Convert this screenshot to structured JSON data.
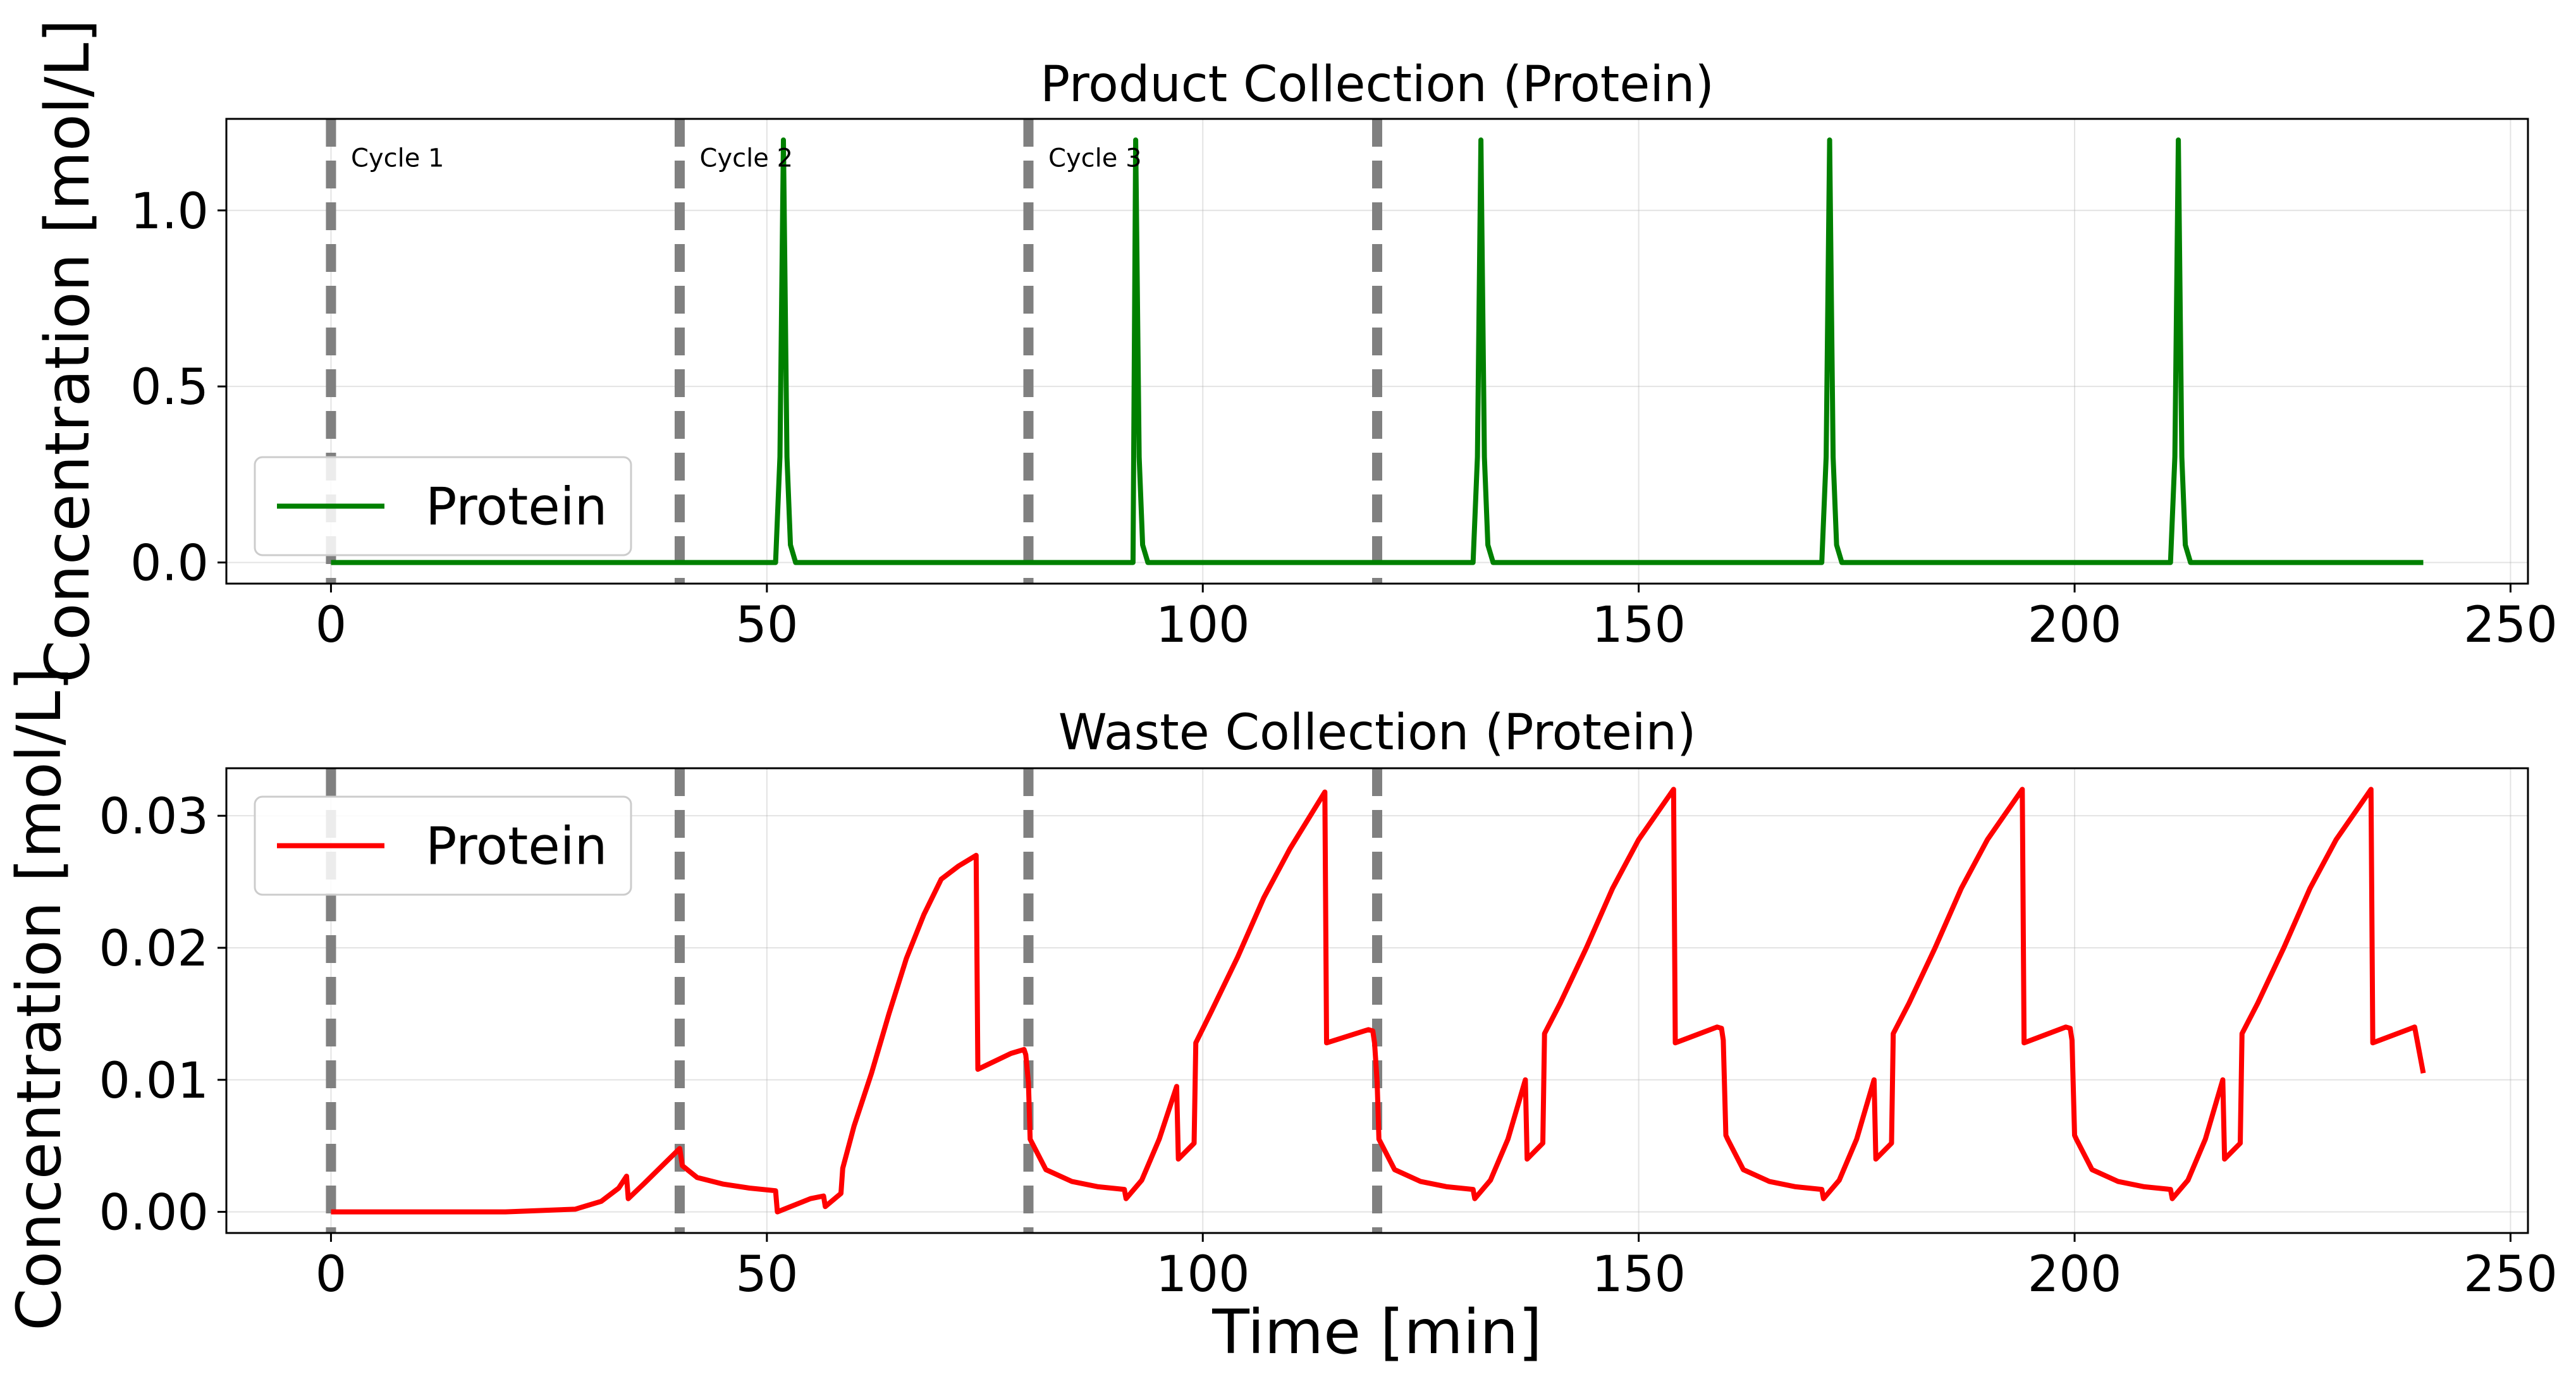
{
  "chart_data": [
    {
      "type": "line",
      "title": "Product Collection (Protein)",
      "xlabel": "",
      "ylabel": "Concentration [mol/L]",
      "xlim": [
        -12,
        252
      ],
      "ylim": [
        -0.06,
        1.26
      ],
      "xticks": [
        0,
        50,
        100,
        150,
        200,
        250
      ],
      "yticks": [
        0.0,
        0.5,
        1.0
      ],
      "ytick_labels": [
        "0.0",
        "0.5",
        "1.0"
      ],
      "grid": true,
      "legend": "lower-left",
      "cycle_lines": [
        0,
        40,
        80,
        120
      ],
      "annotations": [
        {
          "x": 2,
          "y": 1.15,
          "text": "Cycle 1"
        },
        {
          "x": 42,
          "y": 1.15,
          "text": "Cycle 2"
        },
        {
          "x": 82,
          "y": 1.15,
          "text": "Cycle 3"
        }
      ],
      "series": [
        {
          "name": "Protein",
          "color": "#008000",
          "x": [
            0,
            51,
            51.5,
            51.9,
            52.3,
            52.7,
            53.3,
            92,
            92.3,
            92.7,
            93.1,
            93.7,
            131,
            131.5,
            131.9,
            132.3,
            132.7,
            133.3,
            171,
            171.5,
            171.9,
            172.3,
            172.7,
            173.3,
            211,
            211.5,
            211.9,
            212.3,
            212.7,
            213.3,
            240
          ],
          "y": [
            0,
            0,
            0.3,
            1.2,
            0.3,
            0.05,
            0,
            0,
            1.2,
            0.3,
            0.05,
            0,
            0,
            0.3,
            1.2,
            0.3,
            0.05,
            0,
            0,
            0.3,
            1.2,
            0.3,
            0.05,
            0,
            0,
            0.3,
            1.2,
            0.3,
            0.05,
            0,
            0
          ]
        }
      ]
    },
    {
      "type": "line",
      "title": "Waste Collection (Protein)",
      "xlabel": "Time [min]",
      "ylabel": "Concentration [mol/L]",
      "xlim": [
        -12,
        252
      ],
      "ylim": [
        -0.0016,
        0.0336
      ],
      "xticks": [
        0,
        50,
        100,
        150,
        200,
        250
      ],
      "yticks": [
        0.0,
        0.01,
        0.02,
        0.03
      ],
      "ytick_labels": [
        "0.00",
        "0.01",
        "0.02",
        "0.03"
      ],
      "grid": true,
      "legend": "upper-left",
      "cycle_lines": [
        0,
        40,
        80,
        120
      ],
      "series": [
        {
          "name": "Protein",
          "color": "#ff0000",
          "x": [
            0,
            20,
            28,
            31,
            33,
            33.9,
            34.1,
            36,
            38,
            40,
            40.3,
            42,
            45,
            48,
            51,
            51.2,
            55,
            56.5,
            56.7,
            58.5,
            58.7,
            60,
            62,
            64,
            66,
            68,
            70,
            72,
            74,
            74.2,
            78,
            79.5,
            79.7,
            80,
            80.2,
            82,
            85,
            88,
            91,
            91.2,
            93,
            95,
            97,
            97.2,
            99,
            99.2,
            101,
            104,
            107,
            110,
            114,
            114.2,
            119,
            119.5,
            119.7,
            120,
            120.2,
            122,
            125,
            128,
            131,
            131.2,
            133,
            135,
            137,
            137.2,
            139,
            139.2,
            141,
            144,
            147,
            150,
            154,
            154.2,
            159,
            159.5,
            159.7,
            160,
            160.2,
            162,
            165,
            168,
            171,
            171.2,
            173,
            175,
            177,
            177.2,
            179,
            179.2,
            181,
            184,
            187,
            190,
            194,
            194.2,
            199,
            199.5,
            199.7,
            200,
            200.2,
            202,
            205,
            208,
            211,
            211.2,
            213,
            215,
            217,
            217.2,
            219,
            219.2,
            221,
            224,
            227,
            230,
            234,
            234.2,
            239,
            240
          ],
          "y": [
            0,
            0,
            0.0002,
            0.0008,
            0.0018,
            0.0027,
            0.001,
            0.0022,
            0.0035,
            0.0048,
            0.0035,
            0.0026,
            0.0021,
            0.0018,
            0.0016,
            0,
            0.001,
            0.0012,
            0.0004,
            0.0014,
            0.0033,
            0.0065,
            0.0105,
            0.015,
            0.0192,
            0.0225,
            0.0252,
            0.0262,
            0.027,
            0.0108,
            0.012,
            0.0123,
            0.0119,
            0.0098,
            0.0055,
            0.0032,
            0.0023,
            0.0019,
            0.0017,
            0.001,
            0.0024,
            0.0055,
            0.0095,
            0.004,
            0.0052,
            0.0128,
            0.0152,
            0.0193,
            0.0238,
            0.0275,
            0.0318,
            0.0128,
            0.0138,
            0.0137,
            0.0128,
            0.0098,
            0.0055,
            0.0032,
            0.0023,
            0.0019,
            0.0017,
            0.001,
            0.0024,
            0.0055,
            0.01,
            0.004,
            0.0052,
            0.0135,
            0.0158,
            0.02,
            0.0245,
            0.0282,
            0.032,
            0.0128,
            0.014,
            0.0139,
            0.013,
            0.0058,
            0.0055,
            0.0032,
            0.0023,
            0.0019,
            0.0017,
            0.001,
            0.0024,
            0.0055,
            0.01,
            0.004,
            0.0052,
            0.0135,
            0.0158,
            0.02,
            0.0245,
            0.0282,
            0.032,
            0.0128,
            0.014,
            0.0139,
            0.013,
            0.0058,
            0.0055,
            0.0032,
            0.0023,
            0.0019,
            0.0017,
            0.001,
            0.0024,
            0.0055,
            0.01,
            0.004,
            0.0052,
            0.0135,
            0.0158,
            0.02,
            0.0245,
            0.0282,
            0.032,
            0.0128,
            0.014,
            0.0105
          ]
        }
      ]
    }
  ]
}
